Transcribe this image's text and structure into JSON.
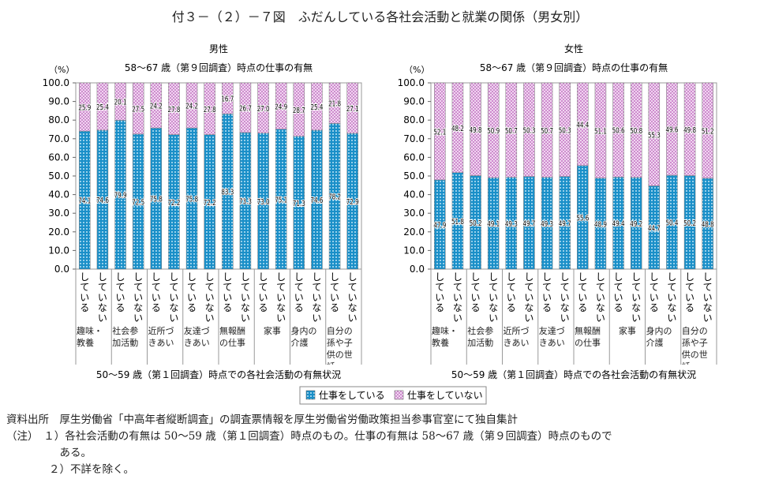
{
  "title": "付３－（２）－７図　ふだんしている各社会活動と就業の関係（男女別）",
  "chart_data": [
    {
      "type": "bar",
      "stacked": true,
      "title": "男性",
      "subtitle": "58～67 歳（第９回調査）時点の仕事の有無",
      "ylabel": "（%）",
      "xlabel": "50～59 歳（第１回調査）時点での各社会活動の有無状況",
      "ylim": [
        0,
        100
      ],
      "yticks": [
        0,
        10,
        20,
        30,
        40,
        50,
        60,
        70,
        80,
        90,
        100
      ],
      "groups": [
        "趣味・教養",
        "社会参加活動",
        "近所づきあい",
        "友達づきあい",
        "無報酬の仕事",
        "家事",
        "身内の介護",
        "自分の孫や子供の世話"
      ],
      "subcategories": [
        "している",
        "していない"
      ],
      "series": [
        {
          "name": "仕事をしている",
          "values": [
            74.1,
            74.6,
            79.9,
            72.5,
            75.8,
            72.2,
            75.8,
            72.2,
            83.3,
            73.3,
            73.0,
            75.1,
            71.3,
            74.6,
            78.2,
            72.9
          ]
        },
        {
          "name": "仕事をしていない",
          "values": [
            25.9,
            25.4,
            20.1,
            27.5,
            24.2,
            27.8,
            24.2,
            27.8,
            16.7,
            26.7,
            27.0,
            24.9,
            28.7,
            25.4,
            21.8,
            27.1
          ]
        }
      ]
    },
    {
      "type": "bar",
      "stacked": true,
      "title": "女性",
      "subtitle": "58～67 歳（第９回調査）時点の仕事の有無",
      "ylabel": "（%）",
      "xlabel": "50～59 歳（第１回調査）時点での各社会活動の有無状況",
      "ylim": [
        0,
        100
      ],
      "yticks": [
        0,
        10,
        20,
        30,
        40,
        50,
        60,
        70,
        80,
        90,
        100
      ],
      "groups": [
        "趣味・教養",
        "社会参加活動",
        "近所づきあい",
        "友達づきあい",
        "無報酬の仕事",
        "家事",
        "身内の介護",
        "自分の孫や子供の世話"
      ],
      "subcategories": [
        "している",
        "していない"
      ],
      "series": [
        {
          "name": "仕事をしている",
          "values": [
            47.9,
            51.8,
            50.2,
            49.1,
            49.3,
            49.7,
            49.3,
            49.7,
            55.6,
            48.9,
            49.4,
            49.2,
            44.7,
            50.4,
            50.2,
            48.8
          ]
        },
        {
          "name": "仕事をしていない",
          "values": [
            52.1,
            48.2,
            49.8,
            50.9,
            50.7,
            50.3,
            50.7,
            50.3,
            44.4,
            51.1,
            50.6,
            50.8,
            55.3,
            49.6,
            49.8,
            51.2
          ]
        }
      ]
    }
  ],
  "legend": [
    "仕事をしている",
    "仕事をしていない"
  ],
  "colors": {
    "working": "#1a8fc8",
    "not_working": "#c77cc7"
  },
  "notes": [
    "資料出所　厚生労働省「中高年者縦断調査」の調査票情報を厚生労働省労働政策担当参事官室にて独自集計",
    "（注）　１）各社会活動の有無は 50～59 歳（第１回調査）時点のもの。仕事の有無は 58～67 歳（第９回調査）時点のもので",
    "　　　　　ある。",
    "　　　　２）不詳を除く。"
  ]
}
